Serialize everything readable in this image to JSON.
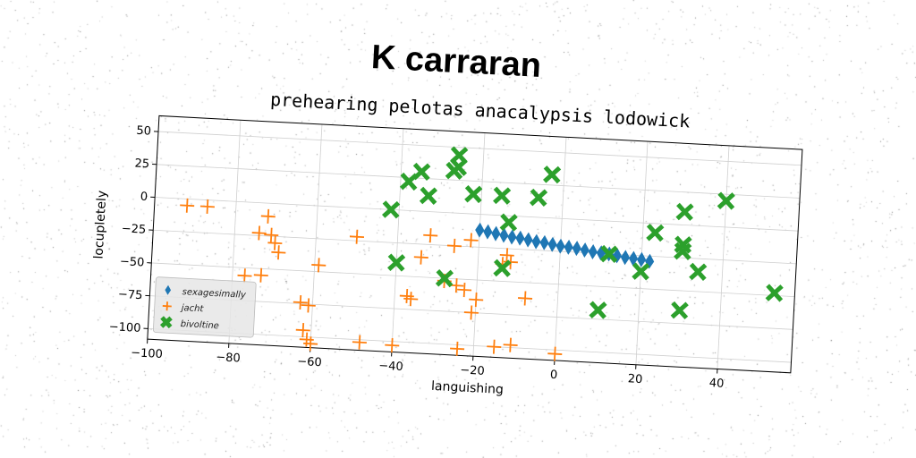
{
  "title": "K carraran",
  "chart_data": {
    "type": "scatter",
    "subtitle": "prehearing pelotas anacalypsis lodowick",
    "xlabel": "languishing",
    "ylabel": "locupletely",
    "xlim": [
      -100,
      58
    ],
    "ylim": [
      -108,
      62
    ],
    "xticks": [
      -100,
      -80,
      -60,
      -40,
      -20,
      0,
      20,
      40
    ],
    "yticks": [
      50,
      25,
      0,
      -25,
      -50,
      -75,
      -100
    ],
    "grid": true,
    "legend_position": "lower-left",
    "series": [
      {
        "name": "sexagesimally",
        "marker": "diamond",
        "color": "#1f77b4",
        "x": [
          -20,
          -18,
          -16,
          -14,
          -12,
          -10,
          -8,
          -6,
          -4,
          -2,
          0,
          2,
          4,
          6,
          8,
          10,
          12,
          14,
          16,
          18,
          20,
          22
        ],
        "y": [
          -12,
          -13,
          -14,
          -15,
          -16,
          -16.5,
          -17.5,
          -18.5,
          -19,
          -20,
          -21,
          -21.5,
          -22,
          -23,
          -24,
          -24.5,
          -25,
          -26,
          -27,
          -27.5,
          -28,
          -29
        ]
      },
      {
        "name": "jacht",
        "marker": "plus",
        "color": "#ff7f0e",
        "x": [
          -92,
          -87,
          -72,
          -74,
          -71,
          -70,
          -69,
          -77,
          -73,
          -63,
          -61,
          -59,
          -62,
          -61,
          -60,
          -50,
          -48,
          -40,
          -37,
          -36,
          -34,
          -32,
          -28,
          -26,
          -25,
          -23,
          -22,
          -20,
          -21,
          -24,
          -15,
          -14,
          -13,
          -11,
          -8,
          0,
          0,
          -12
        ],
        "y": [
          -5,
          -5,
          -10,
          -23,
          -24,
          -30,
          -37,
          -56,
          -55,
          -74,
          -76,
          -45,
          -95,
          -102,
          -105,
          -22,
          -102,
          -103,
          -65,
          -67,
          -35,
          -18,
          -52,
          -25,
          -55,
          -58,
          -20,
          -65,
          -75,
          -103,
          -100,
          -37,
          -30,
          -98,
          -62,
          -103,
          -115,
          -35
        ]
      },
      {
        "name": "bivoltine",
        "marker": "x",
        "color": "#2ca02c",
        "x": [
          -38,
          -35,
          -26,
          -26,
          -27,
          -33,
          -42,
          -22,
          -15,
          -6,
          -3,
          -13,
          -40,
          -28,
          -14,
          12,
          23,
          30,
          30,
          30,
          34,
          40,
          53,
          20,
          30,
          10
        ],
        "y": [
          22,
          30,
          44,
          35,
          32,
          12,
          0,
          15,
          15,
          15,
          33,
          -5,
          -40,
          -50,
          -40,
          -25,
          -7,
          10,
          -15,
          -20,
          -35,
          20,
          -48,
          -37,
          -65,
          -68
        ]
      }
    ]
  }
}
